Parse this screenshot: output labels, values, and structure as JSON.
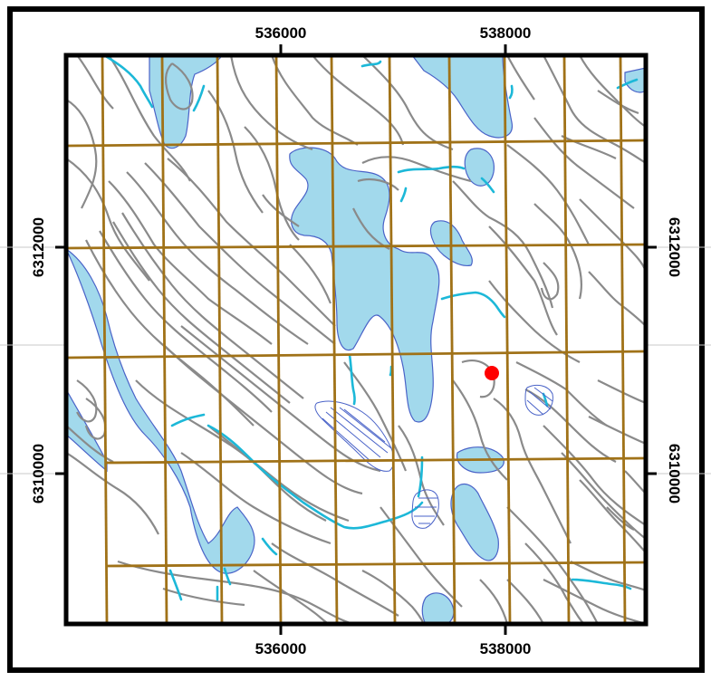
{
  "map": {
    "x_ticks": [
      "536000",
      "538000"
    ],
    "y_ticks": [
      "6312000",
      "6310000"
    ],
    "colors": {
      "water": "#a2d9ec",
      "water_outline": "#4a63c8",
      "contour": "#8a8a8a",
      "stream": "#1cb8d8",
      "grid": "#a07218",
      "point": "#ff0000",
      "frame": "#000000"
    }
  }
}
